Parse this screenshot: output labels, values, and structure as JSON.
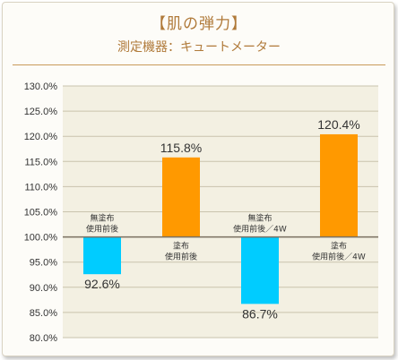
{
  "header": {
    "title": "【肌の弾力】",
    "subtitle": "測定機器：キュートメーター"
  },
  "colors": {
    "blue": "#00ccff",
    "orange": "#ff9900",
    "plot_bg": "#f3f0e2",
    "grid": "#c9c3ad",
    "baseline": "#7a7060"
  },
  "chart_data": {
    "type": "bar",
    "title": "【肌の弾力】",
    "subtitle": "測定機器：キュートメーター",
    "baseline": 100.0,
    "ylim": [
      80.0,
      130.0
    ],
    "yticks": [
      "130.0%",
      "125.0%",
      "120.0%",
      "115.0%",
      "110.0%",
      "105.0%",
      "100.0%",
      "95.0%",
      "90.0%",
      "85.0%",
      "80.0%"
    ],
    "grid": true,
    "bars": [
      {
        "category": [
          "無塗布",
          "使用前後"
        ],
        "value": 92.6,
        "value_label": "92.6%",
        "color": "#00ccff"
      },
      {
        "category": [
          "塗布",
          "使用前後"
        ],
        "value": 115.8,
        "value_label": "115.8%",
        "color": "#ff9900"
      },
      {
        "category": [
          "無塗布",
          "使用前後／4W"
        ],
        "value": 86.7,
        "value_label": "86.7%",
        "color": "#00ccff"
      },
      {
        "category": [
          "塗布",
          "使用前後／4W"
        ],
        "value": 120.4,
        "value_label": "120.4%",
        "color": "#ff9900"
      }
    ]
  }
}
